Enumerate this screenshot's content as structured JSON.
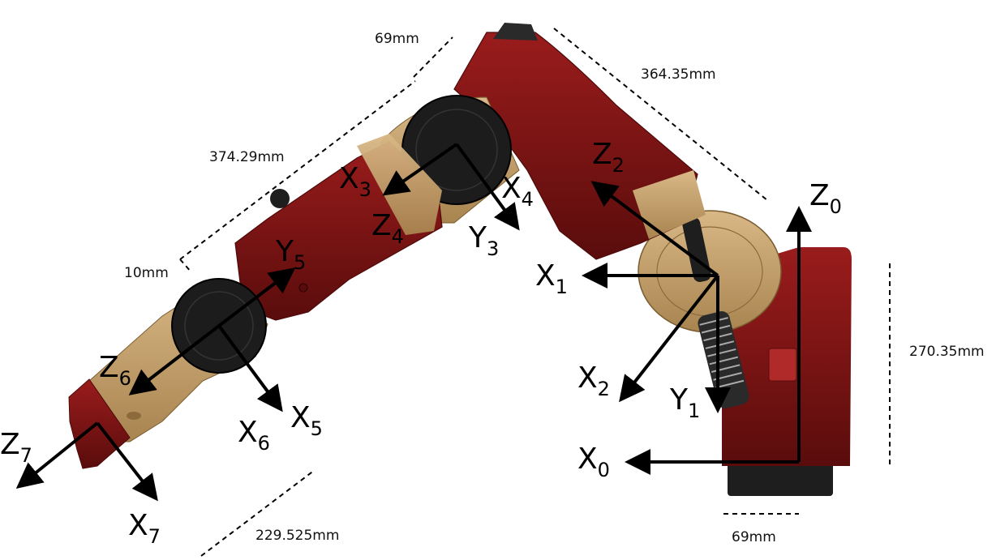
{
  "dimensions": {
    "link1_width": "69mm",
    "link2_length": "364.35mm",
    "link3_length": "374.29mm",
    "offset": "10mm",
    "base_height": "270.35mm",
    "wrist_length": "229.525mm",
    "base_width": "69mm"
  },
  "frames": [
    {
      "id": "z0",
      "main": "Z",
      "sub": "0"
    },
    {
      "id": "x0",
      "main": "X",
      "sub": "0"
    },
    {
      "id": "x1",
      "main": "X",
      "sub": "1"
    },
    {
      "id": "y1",
      "main": "Y",
      "sub": "1"
    },
    {
      "id": "x2",
      "main": "X",
      "sub": "2"
    },
    {
      "id": "z2",
      "main": "Z",
      "sub": "2"
    },
    {
      "id": "x3",
      "main": "X",
      "sub": "3"
    },
    {
      "id": "y3",
      "main": "Y",
      "sub": "3"
    },
    {
      "id": "x4",
      "main": "X",
      "sub": "4"
    },
    {
      "id": "z4",
      "main": "Z",
      "sub": "4"
    },
    {
      "id": "y5",
      "main": "Y",
      "sub": "5"
    },
    {
      "id": "x5",
      "main": "X",
      "sub": "5"
    },
    {
      "id": "z6",
      "main": "Z",
      "sub": "6"
    },
    {
      "id": "x6",
      "main": "X",
      "sub": "6"
    },
    {
      "id": "z7",
      "main": "Z",
      "sub": "7"
    },
    {
      "id": "x7",
      "main": "X",
      "sub": "7"
    }
  ],
  "colors": {
    "link_red": "#7a1414",
    "link_red_dark": "#4e0a0a",
    "joint_tan": "#c9a46e",
    "joint_tan_dark": "#9c7a48",
    "actuator_black": "#1c1c1c"
  }
}
